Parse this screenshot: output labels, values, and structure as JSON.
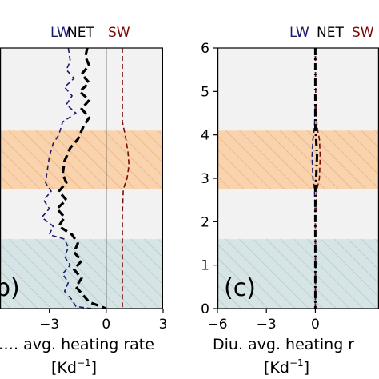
{
  "chart_data": [
    {
      "type": "line",
      "panel_label": "b)",
      "xlabel_line1": "…. avg. heating rate",
      "xlabel_line2": "[Kd",
      "xlabel_exp": "−1",
      "xlabel_close": "]",
      "xticks": [
        {
          "value": -3,
          "label": "−3"
        },
        {
          "value": 0,
          "label": "0"
        },
        {
          "value": 3,
          "label": "3"
        }
      ],
      "xlim": [
        -5.6,
        3.0
      ],
      "ylim": [
        0,
        6
      ],
      "legend": [
        {
          "label": "LW",
          "color": "#1a1a6e"
        },
        {
          "label": "NET",
          "color": "#000000"
        },
        {
          "label": "SW",
          "color": "#7a0a0a"
        }
      ],
      "bands": [
        {
          "y0": 4.1,
          "y1": 6.0,
          "color": "#f2f2f2",
          "hatch": false
        },
        {
          "y0": 2.75,
          "y1": 4.1,
          "color": "#f9d3ad",
          "hatch": true
        },
        {
          "y0": 1.6,
          "y1": 2.75,
          "color": "#f2f2f2",
          "hatch": false
        },
        {
          "y0": 0.0,
          "y1": 1.6,
          "color": "#d6e4e6",
          "hatch": true
        }
      ],
      "series": [
        {
          "label": "LW",
          "color": "#1a1a6e",
          "width": 1.6,
          "dash": "6 4",
          "points": [
            [
              -2.0,
              6
            ],
            [
              -1.9,
              5.7
            ],
            [
              -2.1,
              5.5
            ],
            [
              -1.7,
              5.3
            ],
            [
              -2.2,
              5.1
            ],
            [
              -1.8,
              4.9
            ],
            [
              -2.1,
              4.7
            ],
            [
              -1.6,
              4.5
            ],
            [
              -2.3,
              4.3
            ],
            [
              -2.5,
              4.0
            ],
            [
              -2.8,
              3.8
            ],
            [
              -3.0,
              3.5
            ],
            [
              -3.1,
              3.2
            ],
            [
              -3.2,
              2.9
            ],
            [
              -2.9,
              2.7
            ],
            [
              -3.3,
              2.5
            ],
            [
              -3.0,
              2.3
            ],
            [
              -3.4,
              2.1
            ],
            [
              -2.8,
              1.9
            ],
            [
              -3.0,
              1.7
            ],
            [
              -2.2,
              1.6
            ],
            [
              -2.0,
              1.4
            ],
            [
              -2.2,
              1.2
            ],
            [
              -1.9,
              1.0
            ],
            [
              -2.3,
              0.8
            ],
            [
              -2.0,
              0.6
            ],
            [
              -2.2,
              0.4
            ],
            [
              -1.8,
              0.2
            ],
            [
              -1.6,
              0.05
            ],
            [
              -0.8,
              0.0
            ]
          ]
        },
        {
          "label": "NET",
          "color": "#000000",
          "width": 3.2,
          "dash": "9 5",
          "points": [
            [
              -1.0,
              6
            ],
            [
              -1.1,
              5.8
            ],
            [
              -0.9,
              5.6
            ],
            [
              -1.3,
              5.4
            ],
            [
              -0.9,
              5.2
            ],
            [
              -1.4,
              5.0
            ],
            [
              -0.9,
              4.8
            ],
            [
              -1.3,
              4.6
            ],
            [
              -0.9,
              4.4
            ],
            [
              -1.2,
              4.2
            ],
            [
              -1.5,
              3.9
            ],
            [
              -1.9,
              3.7
            ],
            [
              -2.2,
              3.4
            ],
            [
              -2.3,
              3.1
            ],
            [
              -2.1,
              2.9
            ],
            [
              -2.5,
              2.7
            ],
            [
              -2.1,
              2.5
            ],
            [
              -2.6,
              2.3
            ],
            [
              -2.2,
              2.1
            ],
            [
              -2.5,
              1.9
            ],
            [
              -1.8,
              1.7
            ],
            [
              -1.5,
              1.5
            ],
            [
              -1.7,
              1.3
            ],
            [
              -1.3,
              1.1
            ],
            [
              -1.7,
              0.9
            ],
            [
              -1.3,
              0.7
            ],
            [
              -1.6,
              0.5
            ],
            [
              -1.2,
              0.3
            ],
            [
              -0.9,
              0.15
            ],
            [
              0.0,
              0.0
            ]
          ]
        },
        {
          "label": "SW",
          "color": "#7a0a0a",
          "width": 1.6,
          "dash": "6 4",
          "points": [
            [
              0.85,
              6
            ],
            [
              0.85,
              5.0
            ],
            [
              0.85,
              4.3
            ],
            [
              1.0,
              4.0
            ],
            [
              1.15,
              3.6
            ],
            [
              1.2,
              3.3
            ],
            [
              1.1,
              3.0
            ],
            [
              0.9,
              2.75
            ],
            [
              0.85,
              2.2
            ],
            [
              0.85,
              1.5
            ],
            [
              0.85,
              0.8
            ],
            [
              0.85,
              0.0
            ]
          ]
        }
      ]
    },
    {
      "type": "line",
      "panel_label": "(c)",
      "xlabel_line1": "Diu. avg. heating r",
      "xlabel_line2": "[Kd",
      "xlabel_exp": "−1",
      "xlabel_close": "]",
      "xticks": [
        {
          "value": -6,
          "label": "−6"
        },
        {
          "value": -3,
          "label": "−3"
        },
        {
          "value": 0,
          "label": "0"
        }
      ],
      "yticks": [
        {
          "value": 0,
          "label": "0"
        },
        {
          "value": 1,
          "label": "1"
        },
        {
          "value": 2,
          "label": "2"
        },
        {
          "value": 3,
          "label": "3"
        },
        {
          "value": 4,
          "label": "4"
        },
        {
          "value": 5,
          "label": "5"
        },
        {
          "value": 6,
          "label": "6"
        }
      ],
      "xlim": [
        -6,
        3.9
      ],
      "ylim": [
        0,
        6
      ],
      "legend": [
        {
          "label": "LW",
          "color": "#1a1a6e"
        },
        {
          "label": "NET",
          "color": "#000000"
        },
        {
          "label": "SW",
          "color": "#7a0a0a"
        }
      ],
      "bands": [
        {
          "y0": 4.1,
          "y1": 6.0,
          "color": "#f2f2f2",
          "hatch": false
        },
        {
          "y0": 2.75,
          "y1": 4.1,
          "color": "#f9d3ad",
          "hatch": true
        },
        {
          "y0": 1.6,
          "y1": 2.75,
          "color": "#f2f2f2",
          "hatch": false
        },
        {
          "y0": 0.0,
          "y1": 1.6,
          "color": "#d6e4e6",
          "hatch": true
        }
      ],
      "series": [
        {
          "label": "LW",
          "color": "#1a1a6e",
          "width": 1.6,
          "dash": "6 4",
          "points": [
            [
              0.0,
              6
            ],
            [
              0.02,
              5.0
            ],
            [
              -0.05,
              4.2
            ],
            [
              -0.15,
              3.9
            ],
            [
              -0.2,
              3.5
            ],
            [
              -0.15,
              3.0
            ],
            [
              -0.05,
              2.75
            ],
            [
              0.0,
              2.0
            ],
            [
              0.02,
              1.0
            ],
            [
              0.0,
              0.0
            ]
          ]
        },
        {
          "label": "NET",
          "color": "#000000",
          "width": 3.0,
          "dash": "9 4 2 4",
          "points": [
            [
              0.0,
              6
            ],
            [
              0.0,
              5.0
            ],
            [
              0.0,
              4.2
            ],
            [
              0.05,
              3.9
            ],
            [
              0.1,
              3.5
            ],
            [
              0.05,
              3.0
            ],
            [
              0.0,
              2.75
            ],
            [
              0.0,
              2.0
            ],
            [
              0.0,
              1.0
            ],
            [
              0.0,
              0.0
            ]
          ]
        },
        {
          "label": "SW",
          "color": "#7a0a0a",
          "width": 1.6,
          "dash": "6 4",
          "points": [
            [
              0.0,
              6
            ],
            [
              0.02,
              5.0
            ],
            [
              0.1,
              4.2
            ],
            [
              0.25,
              3.9
            ],
            [
              0.3,
              3.5
            ],
            [
              0.25,
              3.0
            ],
            [
              0.1,
              2.75
            ],
            [
              0.0,
              2.0
            ],
            [
              0.0,
              1.0
            ],
            [
              0.0,
              0.0
            ]
          ]
        }
      ]
    }
  ]
}
